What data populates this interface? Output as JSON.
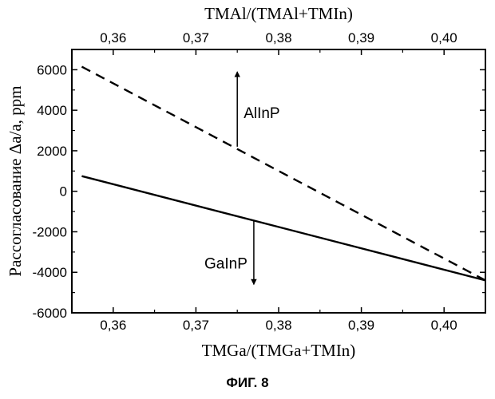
{
  "chart_data": {
    "type": "line",
    "x_bottom": {
      "label": "TMGa/(TMGa+TMIn)",
      "range": [
        0.355,
        0.405
      ],
      "ticks": [
        0.36,
        0.37,
        0.38,
        0.39,
        0.4
      ],
      "tick_labels": [
        "0,36",
        "0,37",
        "0,38",
        "0,39",
        "0,40"
      ]
    },
    "x_top": {
      "label": "TMAl/(TMAl+TMIn)",
      "range": [
        0.355,
        0.405
      ],
      "ticks": [
        0.36,
        0.37,
        0.38,
        0.39,
        0.4
      ],
      "tick_labels": [
        "0,36",
        "0,37",
        "0,38",
        "0,39",
        "0,40"
      ]
    },
    "y": {
      "label": "Рассогласование Δa/a, ppm",
      "range": [
        -6000,
        7000
      ],
      "ticks": [
        -6000,
        -4000,
        -2000,
        0,
        2000,
        4000,
        6000
      ],
      "tick_labels": [
        "-6000",
        "-4000",
        "-2000",
        "0",
        "2000",
        "4000",
        "6000"
      ]
    },
    "series": [
      {
        "name": "AlInP",
        "style": "dashed",
        "axis": "top",
        "x": [
          0.3562,
          0.405
        ],
        "y": [
          6150,
          -4400
        ]
      },
      {
        "name": "GaInP",
        "style": "solid",
        "axis": "bottom",
        "x": [
          0.3562,
          0.405
        ],
        "y": [
          750,
          -4400
        ]
      }
    ],
    "annotations": [
      {
        "text": "AlInP",
        "arrow_x": 0.375,
        "arrow_from": 2200,
        "arrow_to": 5900
      },
      {
        "text": "GaInP",
        "arrow_x": 0.377,
        "arrow_from": -1450,
        "arrow_to": -4600
      }
    ],
    "grid": false,
    "legend": "none"
  },
  "caption": "ФИГ. 8"
}
